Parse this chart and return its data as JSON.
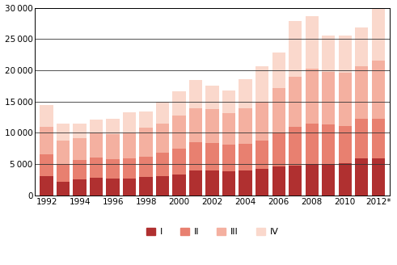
{
  "years": [
    1992,
    1993,
    1994,
    1995,
    1996,
    1997,
    1998,
    1999,
    2000,
    2001,
    2002,
    2003,
    2004,
    2005,
    2006,
    2007,
    2008,
    2009,
    2010,
    2011,
    2012
  ],
  "Q1": [
    3100,
    2200,
    2600,
    2800,
    2700,
    2700,
    2900,
    3100,
    3300,
    4000,
    4000,
    3900,
    4000,
    4200,
    4600,
    4700,
    5000,
    5000,
    5100,
    5900,
    5900
  ],
  "Q2": [
    3500,
    2800,
    3000,
    3200,
    3100,
    3200,
    3300,
    3700,
    4200,
    4500,
    4400,
    4200,
    4300,
    4600,
    5500,
    6300,
    6500,
    6300,
    6000,
    6300,
    6400
  ],
  "Q3": [
    4400,
    3800,
    3600,
    4000,
    4000,
    4000,
    4600,
    4700,
    5300,
    5400,
    5400,
    5000,
    5600,
    6200,
    7000,
    8000,
    8700,
    8500,
    8500,
    8500,
    9200
  ],
  "Q4": [
    3400,
    2700,
    2300,
    2100,
    2500,
    3400,
    2600,
    3500,
    3900,
    4500,
    3700,
    3700,
    4700,
    5600,
    5700,
    8900,
    8500,
    5700,
    5900,
    6200,
    8600
  ],
  "colors": [
    "#b03030",
    "#e88070",
    "#f4b0a0",
    "#fad8cc"
  ],
  "xlim_left": 1991.3,
  "xlim_right": 2012.7,
  "ylim": [
    0,
    30000
  ],
  "yticks": [
    0,
    5000,
    10000,
    15000,
    20000,
    25000,
    30000
  ],
  "xtick_labels": [
    "1992",
    "1994",
    "1996",
    "1998",
    "2000",
    "2002",
    "2004",
    "2006",
    "2008",
    "2010",
    "2012*"
  ],
  "xtick_positions": [
    1992,
    1994,
    1996,
    1998,
    2000,
    2002,
    2004,
    2006,
    2008,
    2010,
    2012
  ],
  "legend_labels": [
    "I",
    "II",
    "III",
    "IV"
  ],
  "bar_width": 0.8,
  "background_color": "#ffffff",
  "grid_color": "#333333",
  "figsize": [
    4.91,
    3.28
  ],
  "dpi": 100
}
